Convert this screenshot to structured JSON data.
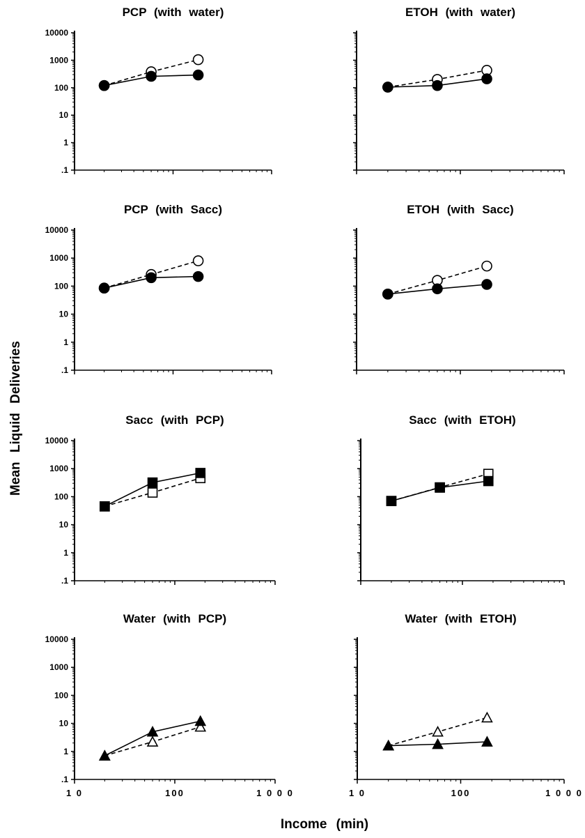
{
  "figure": {
    "ylabel": "Mean Liquid Deliveries",
    "xlabel": "Income (min)"
  },
  "chart_data": [
    {
      "type": "line",
      "title": "PCP (with water)",
      "x": [
        20,
        60,
        180
      ],
      "ylim": [
        0.1,
        10000
      ],
      "xlim": [
        10,
        1000
      ],
      "series": [
        {
          "style": "dashed",
          "marker": "open-circle",
          "values": [
            120,
            380,
            1050
          ]
        },
        {
          "style": "solid",
          "marker": "filled-circle",
          "values": [
            120,
            260,
            290
          ]
        }
      ],
      "yticks": [
        ".1",
        "1",
        "10",
        "100",
        "1000",
        "10000"
      ],
      "xticks": []
    },
    {
      "type": "line",
      "title": "ETOH (with water)",
      "x": [
        20,
        60,
        180
      ],
      "ylim": [
        0.1,
        10000
      ],
      "xlim": [
        10,
        1000
      ],
      "series": [
        {
          "style": "dashed",
          "marker": "open-circle",
          "values": [
            105,
            200,
            430
          ]
        },
        {
          "style": "solid",
          "marker": "filled-circle",
          "values": [
            105,
            120,
            210
          ]
        }
      ],
      "yticks": [],
      "xticks": []
    },
    {
      "type": "line",
      "title": "PCP (with Sacc)",
      "x": [
        20,
        60,
        180
      ],
      "ylim": [
        0.1,
        10000
      ],
      "xlim": [
        10,
        1000
      ],
      "series": [
        {
          "style": "dashed",
          "marker": "open-circle",
          "values": [
            85,
            260,
            800
          ]
        },
        {
          "style": "solid",
          "marker": "filled-circle",
          "values": [
            85,
            200,
            220
          ]
        }
      ],
      "yticks": [
        ".1",
        "1",
        "10",
        "100",
        "1000",
        "10000"
      ],
      "xticks": []
    },
    {
      "type": "line",
      "title": "ETOH (with Sacc)",
      "x": [
        20,
        60,
        180
      ],
      "ylim": [
        0.1,
        10000
      ],
      "xlim": [
        10,
        1000
      ],
      "series": [
        {
          "style": "dashed",
          "marker": "open-circle",
          "values": [
            52,
            160,
            520
          ]
        },
        {
          "style": "solid",
          "marker": "filled-circle",
          "values": [
            52,
            80,
            115
          ]
        }
      ],
      "yticks": [],
      "xticks": []
    },
    {
      "type": "line",
      "title": "Sacc (with PCP)",
      "x": [
        20,
        60,
        180
      ],
      "ylim": [
        0.1,
        10000
      ],
      "xlim": [
        10,
        1000
      ],
      "series": [
        {
          "style": "dashed",
          "marker": "open-square",
          "values": [
            45,
            140,
            460
          ]
        },
        {
          "style": "solid",
          "marker": "filled-square",
          "values": [
            45,
            320,
            700
          ]
        }
      ],
      "yticks": [
        ".1",
        "1",
        "10",
        "100",
        "1000",
        "10000"
      ],
      "xticks": []
    },
    {
      "type": "line",
      "title": "Sacc (with ETOH)",
      "x": [
        20,
        60,
        180
      ],
      "ylim": [
        0.1,
        10000
      ],
      "xlim": [
        10,
        1000
      ],
      "series": [
        {
          "style": "dashed",
          "marker": "open-square",
          "values": [
            70,
            215,
            650
          ]
        },
        {
          "style": "solid",
          "marker": "filled-square",
          "values": [
            70,
            210,
            360
          ]
        }
      ],
      "yticks": [],
      "xticks": []
    },
    {
      "type": "line",
      "title": "Water (with PCP)",
      "x": [
        20,
        60,
        180
      ],
      "ylim": [
        0.1,
        10000
      ],
      "xlim": [
        10,
        1000
      ],
      "series": [
        {
          "style": "dashed",
          "marker": "open-triangle",
          "values": [
            0.7,
            2.2,
            7.5
          ]
        },
        {
          "style": "solid",
          "marker": "filled-triangle",
          "values": [
            0.7,
            5,
            12
          ]
        }
      ],
      "yticks": [
        ".1",
        "1",
        "10",
        "100",
        "1000",
        "10000"
      ],
      "xticks": [
        "1 0",
        "100",
        "1 0 0 0"
      ]
    },
    {
      "type": "line",
      "title": "Water (with ETOH)",
      "x": [
        20,
        60,
        180
      ],
      "ylim": [
        0.1,
        10000
      ],
      "xlim": [
        10,
        1000
      ],
      "series": [
        {
          "style": "dashed",
          "marker": "open-triangle",
          "values": [
            1.6,
            5,
            16
          ]
        },
        {
          "style": "solid",
          "marker": "filled-triangle",
          "values": [
            1.6,
            1.8,
            2.2
          ]
        }
      ],
      "yticks": [],
      "xticks": [
        "1 0",
        "100",
        "1 0 0 0"
      ]
    }
  ]
}
